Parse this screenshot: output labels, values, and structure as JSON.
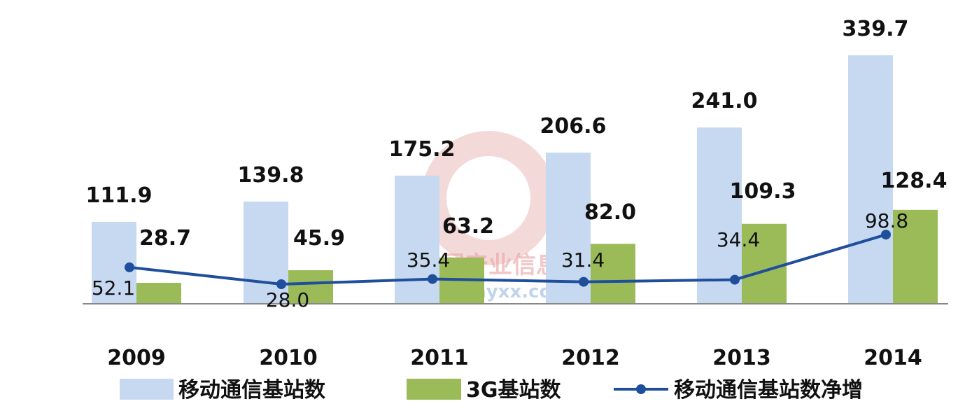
{
  "chart_data": {
    "type": "bar",
    "categories": [
      "2009",
      "2010",
      "2011",
      "2012",
      "2013",
      "2014"
    ],
    "series": [
      {
        "name": "移动通信基站数",
        "type": "bar",
        "color": "#c6d9f1",
        "values": [
          111.9,
          139.8,
          175.2,
          206.6,
          241.0,
          339.7
        ],
        "labels": [
          "111.9",
          "139.8",
          "175.2",
          "206.6",
          "241.0",
          "339.7"
        ]
      },
      {
        "name": "3G基站数",
        "type": "bar",
        "color": "#9bbb59",
        "values": [
          28.7,
          45.9,
          63.2,
          82.0,
          109.3,
          128.4
        ],
        "labels": [
          "28.7",
          "45.9",
          "63.2",
          "82.0",
          "109.3",
          "128.4"
        ]
      },
      {
        "name": "移动通信基站数净增",
        "type": "line",
        "color": "#1f4e9c",
        "values": [
          52.1,
          28.0,
          35.4,
          31.4,
          34.4,
          98.8
        ],
        "labels": [
          "52.1",
          "28.0",
          "35.4",
          "31.4",
          "34.4",
          "98.8"
        ]
      }
    ],
    "ylim": [
      0,
      360
    ],
    "legend_position": "bottom",
    "grid": false
  },
  "watermark": {
    "text": "中国产业信息",
    "url": "www.chyxx.com"
  }
}
